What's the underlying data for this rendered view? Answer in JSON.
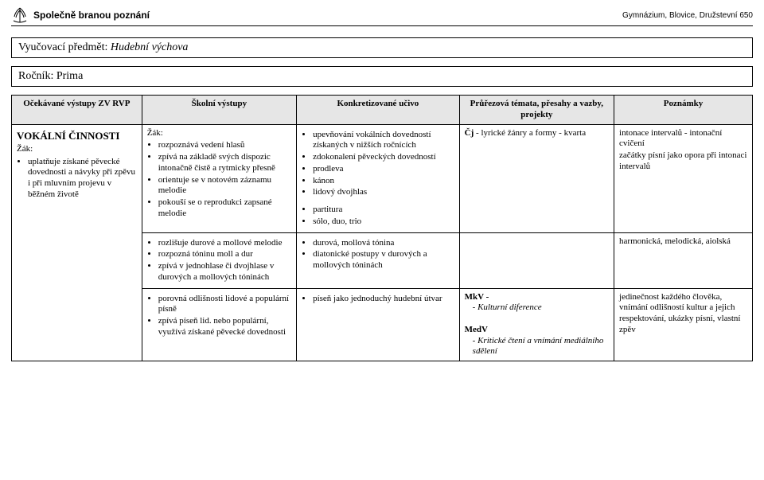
{
  "header": {
    "brand": "Společně branou poznání",
    "school": "Gymnázium, Blovice, Družstevní 650"
  },
  "subject": {
    "label": "Vyučovací předmět:",
    "value": "Hudební výchova"
  },
  "grade": {
    "label": "Ročník:",
    "value": "Prima"
  },
  "columns": {
    "c1": "Očekávané výstupy ZV RVP",
    "c2": "Školní výstupy",
    "c3": "Konkretizované učivo",
    "c4": "Průřezová témata, přesahy a vazby, projekty",
    "c5": "Poznámky"
  },
  "section_title": "VOKÁLNÍ ČINNOSTI",
  "row1": {
    "c1_lead": "Žák:",
    "c1_items": [
      "uplatňuje získané pěvecké dovednosti a návyky při zpěvu i při mluvním projevu v běžném životě"
    ],
    "c2_lead": "Žák:",
    "c2_items": [
      "rozpoznává vedení hlasů",
      "zpívá na základě svých dispozic intonačně čistě a rytmicky přesně",
      "orientuje se v notovém záznamu melodie",
      "pokouší se o reprodukci zapsané melodie"
    ],
    "c3_items": [
      "upevňování vokálních dovedností získaných v nižších ročnících",
      "zdokonalení pěveckých dovedností",
      "prodleva",
      "kánon",
      "lidový dvojhlas"
    ],
    "c3_items_b": [
      "partitura",
      "sólo, duo, trio"
    ],
    "c4": "Čj - lyrické žánry a formy - kvarta",
    "c5_items": [
      "intonace intervalů - intonační cvičení",
      "začátky písní jako opora při intonaci intervalů"
    ]
  },
  "row2": {
    "c2_items": [
      "rozlišuje durové a mollové melodie",
      "rozpozná tóninu moll a dur",
      "zpívá v jednohlase či dvojhlase v durových a mollových tóninách"
    ],
    "c3_items": [
      "durová, mollová tónina",
      "diatonické postupy v durových a mollových tóninách"
    ],
    "c5": "harmonická, melodická, aiolská"
  },
  "row3": {
    "c2_items": [
      "porovná odlišnosti lidové a populární písně",
      "zpívá píseň lid. nebo populární, využívá získané pěvecké dovednosti"
    ],
    "c3_items": [
      "píseň jako jednoduchý hudební útvar"
    ],
    "c4_lines": [
      {
        "text": "MkV -",
        "bold": true
      },
      {
        "text": "- Kulturní diference",
        "italic": true,
        "indent": true
      },
      {
        "text": " ",
        "spacer": true
      },
      {
        "text": "MedV",
        "bold": true
      },
      {
        "text": "- Kritické čtení a vnímání mediálního sdělení",
        "italic": true,
        "indent": true
      }
    ],
    "c5": "jedinečnost každého člověka,\nvnímání odlišností kultur a jejich respektování, ukázky písní, vlastní zpěv"
  },
  "colwidths": {
    "c1": "160px",
    "c2": "190px",
    "c3": "200px",
    "c4": "190px",
    "c5": "170px"
  }
}
